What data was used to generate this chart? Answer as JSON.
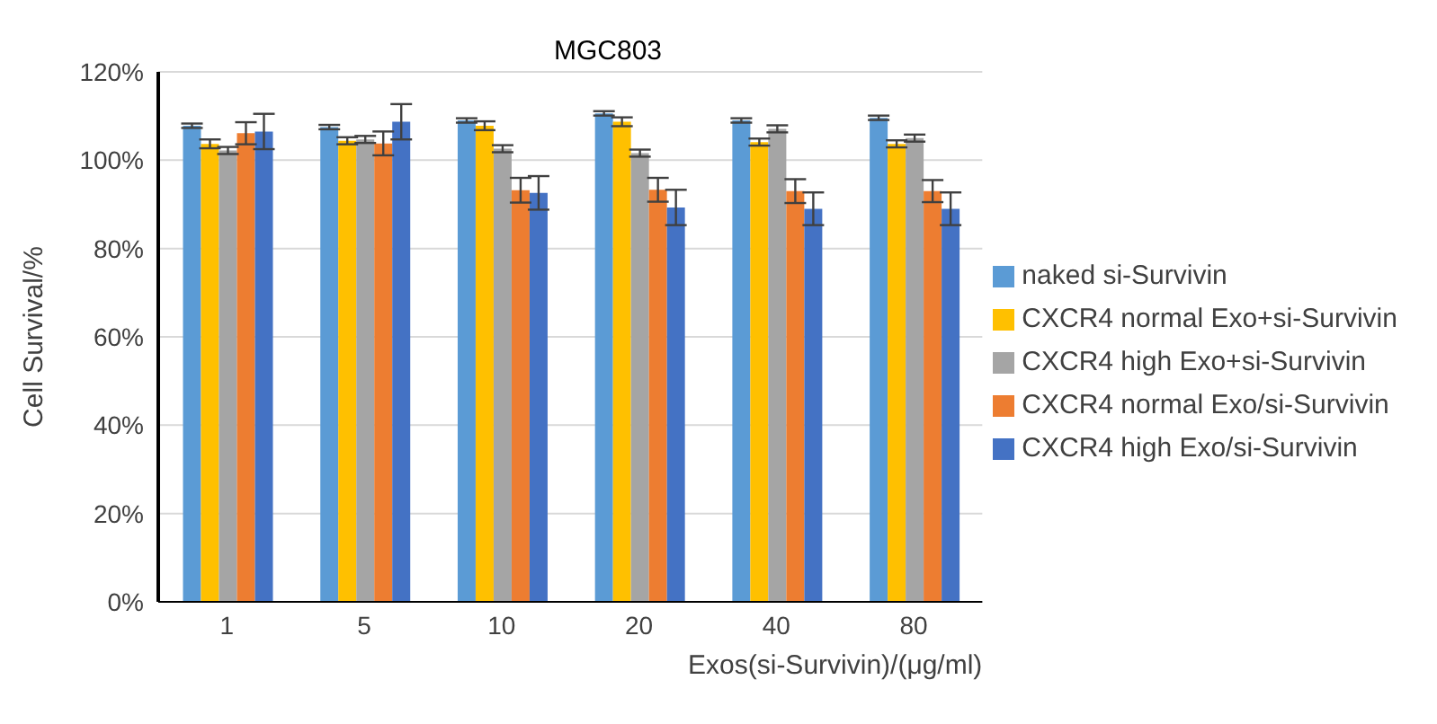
{
  "chart_data": {
    "type": "bar",
    "title": "MGC803",
    "xlabel": "Exos(si-Survivin)/(μg/ml)",
    "ylabel": "Cell Survival/%",
    "categories": [
      "1",
      "5",
      "10",
      "20",
      "40",
      "80"
    ],
    "series": [
      {
        "name": "naked si-Survivin",
        "color": "#5b9bd5",
        "values": [
          107.8,
          107.5,
          109,
          110.6,
          109,
          109.6
        ],
        "errors": [
          0.5,
          0.5,
          0.5,
          0.5,
          0.5,
          0.5
        ]
      },
      {
        "name": "CXCR4 normal Exo+si-Survivin",
        "color": "#ffc000",
        "values": [
          103.7,
          104.4,
          107.8,
          108.7,
          104.1,
          103.7
        ],
        "errors": [
          1,
          0.8,
          1,
          1,
          0.8,
          0.8
        ]
      },
      {
        "name": "CXCR4 high Exo+si-Survivin",
        "color": "#a5a5a5",
        "values": [
          102.2,
          104.7,
          102.6,
          101.6,
          107.1,
          105
        ],
        "errors": [
          0.8,
          0.8,
          0.8,
          0.8,
          0.8,
          0.8
        ]
      },
      {
        "name": "CXCR4 normal Exo/si-Survivin",
        "color": "#ed7d31",
        "values": [
          106.1,
          103.8,
          93.2,
          93.3,
          93,
          93
        ],
        "errors": [
          2.5,
          2.7,
          2.8,
          2.7,
          2.7,
          2.5
        ]
      },
      {
        "name": "CXCR4 high Exo/si-Survivin",
        "color": "#4472c4",
        "values": [
          106.5,
          108.7,
          92.6,
          89.3,
          89,
          89
        ],
        "errors": [
          4,
          4,
          3.8,
          4,
          3.7,
          3.7
        ]
      }
    ],
    "ylim": [
      0,
      120
    ],
    "yticks": [
      {
        "value": 0,
        "label": "0%"
      },
      {
        "value": 20,
        "label": "20%"
      },
      {
        "value": 40,
        "label": "40%"
      },
      {
        "value": 60,
        "label": "60%"
      },
      {
        "value": 80,
        "label": "80%"
      },
      {
        "value": 100,
        "label": "100%"
      },
      {
        "value": 120,
        "label": "120%"
      }
    ],
    "grid": "y",
    "legend": "right"
  }
}
